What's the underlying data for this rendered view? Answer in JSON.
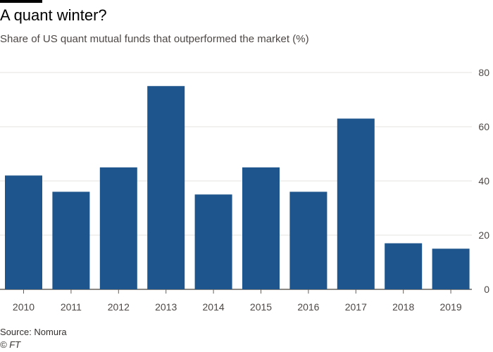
{
  "title": "A quant winter?",
  "subtitle": "Share of US quant mutual funds that outperformed the market (%)",
  "source": "Source: Nomura",
  "credit": "© FT",
  "colors": {
    "bar": "#1e558c",
    "grid": "#e6e3e0",
    "axis": "#66605c",
    "text": "#4d4845"
  },
  "chart_data": {
    "type": "bar",
    "categories": [
      "2010",
      "2011",
      "2012",
      "2013",
      "2014",
      "2015",
      "2016",
      "2017",
      "2018",
      "2019"
    ],
    "values": [
      42,
      36,
      45,
      75,
      35,
      45,
      36,
      63,
      17,
      15
    ],
    "ylim": [
      0,
      80
    ],
    "yticks": [
      0,
      20,
      40,
      60,
      80
    ],
    "yaxis_position": "right",
    "grid": true,
    "legend": "none"
  }
}
